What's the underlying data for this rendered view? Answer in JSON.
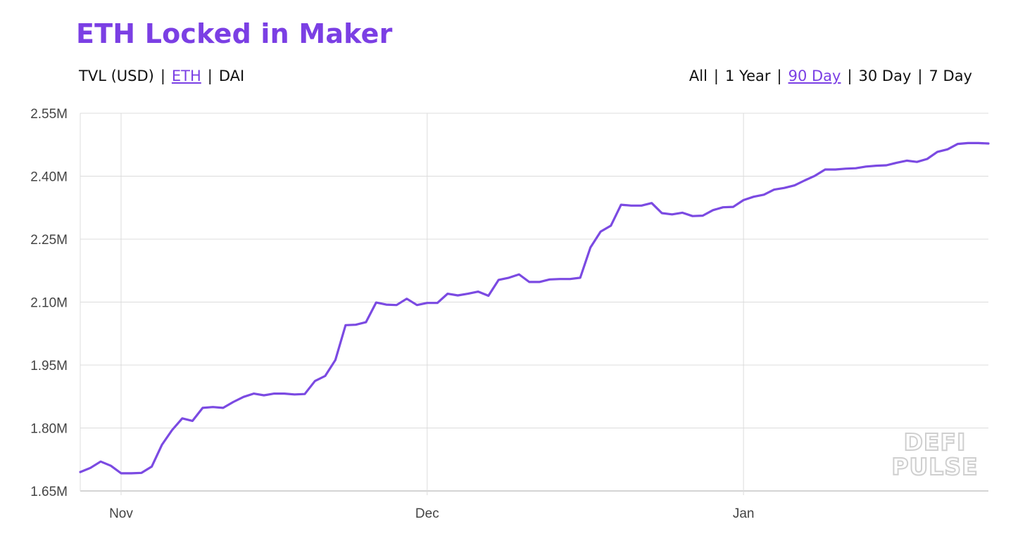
{
  "title": "ETH Locked in Maker",
  "metric_toggle": {
    "options": [
      {
        "label": "TVL (USD)",
        "active": false
      },
      {
        "label": "ETH",
        "active": true
      },
      {
        "label": "DAI",
        "active": false
      }
    ],
    "separator": "|"
  },
  "range_toggle": {
    "options": [
      {
        "label": "All",
        "active": false
      },
      {
        "label": "1 Year",
        "active": false
      },
      {
        "label": "90 Day",
        "active": true
      },
      {
        "label": "30 Day",
        "active": false
      },
      {
        "label": "7 Day",
        "active": false
      }
    ],
    "separator": "|"
  },
  "watermark": {
    "line1": "DEFI",
    "line2": "PULSE"
  },
  "colors": {
    "accent": "#7b3fe4",
    "line": "#7b4ae2",
    "grid": "#dcdcdc"
  },
  "chart_data": {
    "type": "line",
    "title": "ETH Locked in Maker",
    "xlabel": "",
    "ylabel": "",
    "x_ticks": [
      {
        "label": "Nov",
        "day": 4
      },
      {
        "label": "Dec",
        "day": 34
      },
      {
        "label": "Jan",
        "day": 65
      }
    ],
    "y_ticks": [
      "1.65M",
      "1.80M",
      "1.95M",
      "2.10M",
      "2.25M",
      "2.40M",
      "2.55M"
    ],
    "ylim": [
      1.65,
      2.55
    ],
    "y_unit": "M",
    "xlim": [
      0,
      89
    ],
    "grid": true,
    "legend": "none",
    "series": [
      {
        "values": [
          1.695,
          1.705,
          1.72,
          1.71,
          1.692,
          1.692,
          1.693,
          1.708,
          1.76,
          1.795,
          1.823,
          1.817,
          1.848,
          1.85,
          1.848,
          1.862,
          1.874,
          1.882,
          1.878,
          1.882,
          1.882,
          1.88,
          1.881,
          1.912,
          1.924,
          1.962,
          2.045,
          2.046,
          2.052,
          2.099,
          2.094,
          2.093,
          2.108,
          2.093,
          2.098,
          2.098,
          2.12,
          2.116,
          2.12,
          2.125,
          2.115,
          2.153,
          2.158,
          2.166,
          2.148,
          2.148,
          2.154,
          2.155,
          2.155,
          2.158,
          2.23,
          2.268,
          2.282,
          2.332,
          2.33,
          2.33,
          2.336,
          2.312,
          2.309,
          2.313,
          2.305,
          2.306,
          2.319,
          2.326,
          2.327,
          2.343,
          2.351,
          2.356,
          2.368,
          2.372,
          2.378,
          2.39,
          2.401,
          2.416,
          2.416,
          2.418,
          2.419,
          2.423,
          2.425,
          2.426,
          2.432,
          2.437,
          2.434,
          2.441,
          2.458,
          2.464,
          2.477,
          2.479,
          2.479,
          2.478
        ]
      }
    ]
  }
}
